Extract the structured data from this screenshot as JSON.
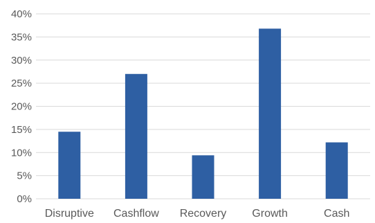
{
  "chart_data": {
    "type": "bar",
    "title": "",
    "xlabel": "",
    "ylabel": "",
    "categories": [
      "Disruptive",
      "Cashflow",
      "Recovery",
      "Growth",
      "Cash"
    ],
    "values": [
      14.5,
      27.0,
      9.4,
      36.8,
      12.2
    ],
    "value_unit": "%",
    "ylim": [
      0,
      40
    ],
    "yticks": [
      "0%",
      "5%",
      "10%",
      "15%",
      "20%",
      "25%",
      "30%",
      "35%",
      "40%"
    ],
    "grid": true,
    "legend": "none",
    "bar_color": "#2e5fa3",
    "grid_color": "#d9d9d9"
  }
}
